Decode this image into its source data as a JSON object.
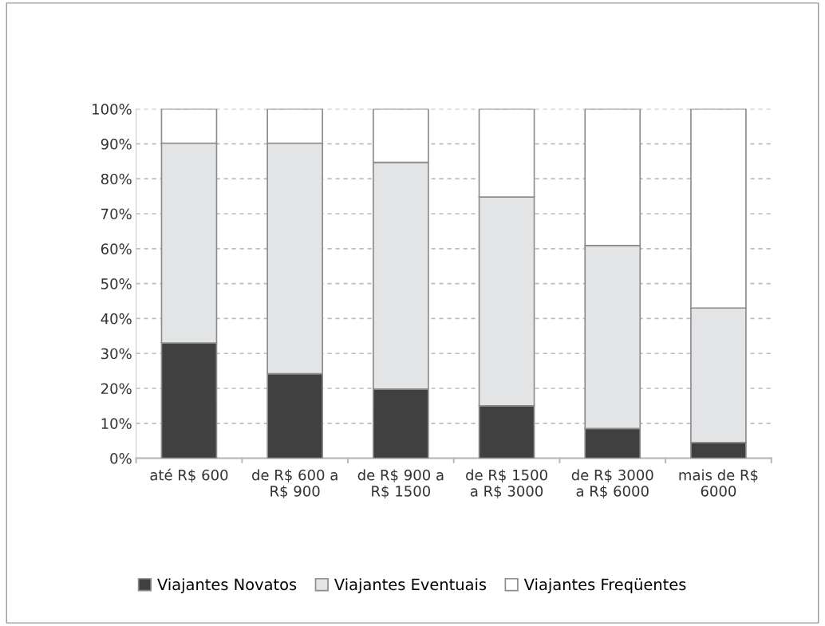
{
  "chart_data": {
    "type": "bar",
    "stacked": true,
    "categories": [
      "até R$ 600",
      "de R$ 600 a\nR$ 900",
      "de R$ 900 a\nR$ 1500",
      "de R$ 1500\na R$ 3000",
      "de R$ 3000\na R$ 6000",
      "mais de R$\n6000"
    ],
    "series": [
      {
        "name": "Viajantes Novatos",
        "color": "#404040",
        "values": [
          33.0,
          24.2,
          19.8,
          15.0,
          8.5,
          4.5
        ]
      },
      {
        "name": "Viajantes Eventuais",
        "color": "#e3e4e6",
        "values": [
          57.2,
          66.0,
          64.9,
          59.8,
          52.4,
          38.5
        ]
      },
      {
        "name": "Viajantes Freqüentes",
        "color": "#ffffff",
        "values": [
          9.8,
          9.8,
          15.3,
          25.2,
          39.1,
          57.0
        ]
      }
    ],
    "ylim": [
      0,
      100
    ],
    "yticks": [
      {
        "value": 0,
        "label": "0%"
      },
      {
        "value": 10,
        "label": "10%"
      },
      {
        "value": 20,
        "label": "20%"
      },
      {
        "value": 30,
        "label": "30%"
      },
      {
        "value": 40,
        "label": "40%"
      },
      {
        "value": 50,
        "label": "50%"
      },
      {
        "value": 60,
        "label": "60%"
      },
      {
        "value": 70,
        "label": "70%"
      },
      {
        "value": 80,
        "label": "80%"
      },
      {
        "value": 90,
        "label": "90%"
      },
      {
        "value": 100,
        "label": "100%"
      }
    ],
    "grid": "y",
    "legend": "bottom"
  }
}
